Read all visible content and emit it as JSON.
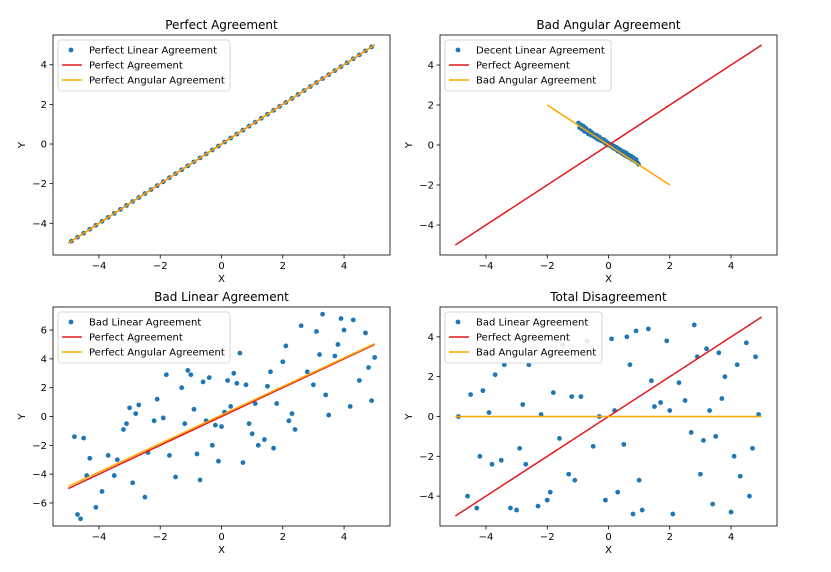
{
  "colors": {
    "points": "#1f77b4",
    "perfect_line": "#e41a1c",
    "angular_line": "#ffa500",
    "axes": "#000000",
    "background": "#ffffff"
  },
  "chart_data": [
    {
      "type": "scatter",
      "title": "Perfect Agreement",
      "xlabel": "X",
      "ylabel": "Y",
      "xlim": [
        -5.5,
        5.5
      ],
      "ylim": [
        -5.6,
        5.5
      ],
      "xticks": [
        -4,
        -2,
        0,
        2,
        4
      ],
      "yticks": [
        -4,
        -2,
        0,
        2,
        4
      ],
      "tick_labels_x": [
        "−4",
        "−2",
        "0",
        "2",
        "4"
      ],
      "tick_labels_y": [
        "−4",
        "−2",
        "0",
        "2",
        "4"
      ],
      "legend_position": "top-left",
      "scatter": {
        "name": "Perfect Linear Agreement",
        "x": [
          -4.9,
          -4.7,
          -4.5,
          -4.3,
          -4.1,
          -3.9,
          -3.7,
          -3.5,
          -3.3,
          -3.1,
          -2.9,
          -2.7,
          -2.5,
          -2.3,
          -2.1,
          -1.9,
          -1.7,
          -1.5,
          -1.3,
          -1.1,
          -0.9,
          -0.7,
          -0.5,
          -0.3,
          -0.1,
          0.1,
          0.3,
          0.5,
          0.7,
          0.9,
          1.1,
          1.3,
          1.5,
          1.7,
          1.9,
          2.1,
          2.3,
          2.5,
          2.7,
          2.9,
          3.1,
          3.3,
          3.5,
          3.7,
          3.9,
          4.1,
          4.3,
          4.5,
          4.7,
          4.9
        ],
        "y": [
          -4.9,
          -4.7,
          -4.5,
          -4.3,
          -4.1,
          -3.9,
          -3.7,
          -3.5,
          -3.3,
          -3.1,
          -2.9,
          -2.7,
          -2.5,
          -2.3,
          -2.1,
          -1.9,
          -1.7,
          -1.5,
          -1.3,
          -1.1,
          -0.9,
          -0.7,
          -0.5,
          -0.3,
          -0.1,
          0.1,
          0.3,
          0.5,
          0.7,
          0.9,
          1.1,
          1.3,
          1.5,
          1.7,
          1.9,
          2.1,
          2.3,
          2.5,
          2.7,
          2.9,
          3.1,
          3.3,
          3.5,
          3.7,
          3.9,
          4.1,
          4.3,
          4.5,
          4.7,
          4.9
        ]
      },
      "lines": [
        {
          "name": "Perfect Agreement",
          "color": "#e41a1c",
          "x": [
            -5,
            5
          ],
          "y": [
            -5,
            5
          ]
        },
        {
          "name": "Perfect Angular Agreement",
          "color": "#ffa500",
          "x": [
            -5,
            5
          ],
          "y": [
            -5,
            5
          ]
        }
      ]
    },
    {
      "type": "scatter",
      "title": "Bad Angular Agreement",
      "xlabel": "X",
      "ylabel": "Y",
      "xlim": [
        -5.5,
        5.5
      ],
      "ylim": [
        -5.5,
        5.5
      ],
      "xticks": [
        -4,
        -2,
        0,
        2,
        4
      ],
      "yticks": [
        -4,
        -2,
        0,
        2,
        4
      ],
      "tick_labels_x": [
        "−4",
        "−2",
        "0",
        "2",
        "4"
      ],
      "tick_labels_y": [
        "−4",
        "−2",
        "0",
        "2",
        "4"
      ],
      "legend_position": "top-left",
      "scatter": {
        "name": "Decent Linear Agreement",
        "x": [
          -0.98,
          -0.94,
          -0.9,
          -0.86,
          -0.82,
          -0.78,
          -0.74,
          -0.7,
          -0.66,
          -0.62,
          -0.58,
          -0.54,
          -0.5,
          -0.46,
          -0.42,
          -0.38,
          -0.34,
          -0.3,
          -0.26,
          -0.22,
          -0.18,
          -0.14,
          -0.1,
          -0.06,
          -0.02,
          0.02,
          0.06,
          0.1,
          0.14,
          0.18,
          0.22,
          0.26,
          0.3,
          0.34,
          0.38,
          0.42,
          0.46,
          0.5,
          0.54,
          0.58,
          0.62,
          0.66,
          0.7,
          0.74,
          0.78,
          0.82,
          0.86,
          0.9,
          0.94,
          0.98
        ],
        "y": [
          1.1,
          0.86,
          1.0,
          0.78,
          0.94,
          0.68,
          0.84,
          0.66,
          0.56,
          0.72,
          0.5,
          0.62,
          0.44,
          0.52,
          0.36,
          0.48,
          0.28,
          0.4,
          0.22,
          0.3,
          0.18,
          0.26,
          0.08,
          0.16,
          0.0,
          0.06,
          -0.04,
          0.02,
          -0.14,
          -0.06,
          -0.2,
          -0.12,
          -0.3,
          -0.2,
          -0.36,
          -0.28,
          -0.44,
          -0.34,
          -0.52,
          -0.4,
          -0.58,
          -0.5,
          -0.66,
          -0.56,
          -0.74,
          -0.64,
          -0.8,
          -0.72,
          -0.88,
          -0.96
        ]
      },
      "lines": [
        {
          "name": "Perfect Agreement",
          "color": "#e41a1c",
          "x": [
            -5,
            5
          ],
          "y": [
            -5,
            5
          ]
        },
        {
          "name": "Bad Angular Agreement",
          "color": "#ffa500",
          "x": [
            -2,
            2
          ],
          "y": [
            2,
            -2
          ]
        }
      ]
    },
    {
      "type": "scatter",
      "title": "Bad Linear Agreement",
      "xlabel": "X",
      "ylabel": "Y",
      "xlim": [
        -5.5,
        5.5
      ],
      "ylim": [
        -7.6,
        7.6
      ],
      "xticks": [
        -4,
        -2,
        0,
        2,
        4
      ],
      "yticks": [
        -6,
        -4,
        -2,
        0,
        2,
        4,
        6
      ],
      "tick_labels_x": [
        "−4",
        "−2",
        "0",
        "2",
        "4"
      ],
      "tick_labels_y": [
        "−6",
        "−4",
        "−2",
        "0",
        "2",
        "4",
        "6"
      ],
      "legend_position": "top-left",
      "scatter": {
        "name": "Bad Linear Agreement",
        "x": [
          -4.8,
          -4.7,
          -4.6,
          -4.5,
          -4.4,
          -4.3,
          -4.1,
          -3.9,
          -3.7,
          -3.5,
          -3.4,
          -3.2,
          -3.1,
          -3.0,
          -2.9,
          -2.8,
          -2.7,
          -2.5,
          -2.4,
          -2.2,
          -2.1,
          -1.9,
          -1.8,
          -1.7,
          -1.5,
          -1.3,
          -1.2,
          -1.1,
          -1.0,
          -0.9,
          -0.8,
          -0.7,
          -0.6,
          -0.5,
          -0.4,
          -0.3,
          -0.2,
          -0.1,
          0.0,
          0.1,
          0.2,
          0.3,
          0.4,
          0.5,
          0.6,
          0.7,
          0.8,
          0.9,
          1.0,
          1.1,
          1.2,
          1.4,
          1.5,
          1.6,
          1.7,
          1.8,
          2.0,
          2.1,
          2.2,
          2.3,
          2.4,
          2.6,
          2.8,
          3.0,
          3.1,
          3.2,
          3.3,
          3.4,
          3.5,
          3.7,
          3.8,
          3.9,
          4.0,
          4.2,
          4.3,
          4.5,
          4.7,
          4.8,
          4.9,
          5.0
        ],
        "y": [
          -1.4,
          -6.8,
          -7.1,
          -1.5,
          -4.1,
          -2.9,
          -6.3,
          -5.2,
          -2.7,
          -4.1,
          -3.0,
          -0.9,
          -0.5,
          0.6,
          -4.6,
          0.2,
          0.8,
          -5.6,
          -2.5,
          -0.3,
          1.2,
          -0.1,
          2.9,
          -2.7,
          -4.2,
          2.0,
          -0.5,
          3.2,
          2.9,
          0.5,
          -2.6,
          -4.4,
          2.4,
          -0.3,
          2.7,
          -2.0,
          -0.6,
          -3.1,
          -0.7,
          0.3,
          2.5,
          0.7,
          3.0,
          2.3,
          4.4,
          -3.2,
          2.2,
          -0.5,
          -1.2,
          0.9,
          -2.0,
          -1.6,
          2.1,
          3.1,
          -2.2,
          0.9,
          3.8,
          4.9,
          -0.3,
          0.2,
          -0.9,
          6.3,
          3.1,
          2.2,
          5.9,
          4.3,
          7.1,
          1.5,
          0.1,
          4.2,
          5.0,
          6.8,
          6.0,
          0.7,
          6.7,
          2.5,
          5.8,
          3.4,
          1.1,
          4.1
        ]
      },
      "lines": [
        {
          "name": "Perfect Agreement",
          "color": "#e41a1c",
          "x": [
            -5,
            5
          ],
          "y": [
            -5,
            5
          ]
        },
        {
          "name": "Perfect Angular Agreement",
          "color": "#ffa500",
          "x": [
            -5,
            5
          ],
          "y": [
            -4.85,
            5.05
          ]
        }
      ]
    },
    {
      "type": "scatter",
      "title": "Total Disagreement",
      "xlabel": "X",
      "ylabel": "Y",
      "xlim": [
        -5.5,
        5.5
      ],
      "ylim": [
        -5.5,
        5.5
      ],
      "xticks": [
        -4,
        -2,
        0,
        2,
        4
      ],
      "yticks": [
        -4,
        -2,
        0,
        2,
        4
      ],
      "tick_labels_x": [
        "−4",
        "−2",
        "0",
        "2",
        "4"
      ],
      "tick_labels_y": [
        "−4",
        "−2",
        "0",
        "2",
        "4"
      ],
      "legend_position": "top-left",
      "scatter": {
        "name": "Bad Linear Agreement",
        "x": [
          -4.9,
          -4.6,
          -4.5,
          -4.3,
          -4.2,
          -4.1,
          -3.9,
          -3.8,
          -3.7,
          -3.5,
          -3.4,
          -3.2,
          -3.0,
          -2.9,
          -2.8,
          -2.7,
          -2.6,
          -2.3,
          -2.2,
          -2.0,
          -1.9,
          -1.8,
          -1.6,
          -1.5,
          -1.3,
          -1.2,
          -1.1,
          -0.9,
          -0.7,
          -0.5,
          -0.3,
          -0.1,
          0.1,
          0.2,
          0.3,
          0.5,
          0.6,
          0.7,
          0.8,
          0.9,
          1.0,
          1.1,
          1.3,
          1.4,
          1.5,
          1.7,
          1.9,
          2.0,
          2.1,
          2.3,
          2.5,
          2.7,
          2.8,
          2.9,
          3.0,
          3.1,
          3.2,
          3.3,
          3.4,
          3.5,
          3.6,
          3.7,
          3.8,
          4.0,
          4.1,
          4.2,
          4.3,
          4.5,
          4.6,
          4.7,
          4.8,
          4.9
        ],
        "y": [
          0.0,
          -4.0,
          1.1,
          -4.6,
          -2.0,
          1.3,
          0.2,
          -2.4,
          2.1,
          -2.2,
          2.6,
          -4.6,
          -4.7,
          -1.6,
          0.6,
          -2.4,
          2.6,
          -4.5,
          0.1,
          -4.2,
          -3.8,
          1.2,
          -1.1,
          3.6,
          -2.9,
          1.0,
          -3.2,
          1.0,
          3.8,
          -1.5,
          0.0,
          -4.2,
          3.9,
          0.3,
          -3.8,
          -1.4,
          4.0,
          2.6,
          -4.9,
          4.3,
          -3.2,
          -4.7,
          4.4,
          1.8,
          0.5,
          0.7,
          3.8,
          0.3,
          -4.9,
          1.7,
          0.8,
          -0.8,
          4.6,
          3.0,
          -2.9,
          -1.2,
          3.4,
          0.3,
          -4.4,
          -1.0,
          3.2,
          0.9,
          2.0,
          -4.8,
          -2.0,
          2.6,
          -3.0,
          3.7,
          -4.0,
          -1.6,
          3.0,
          0.1
        ]
      },
      "lines": [
        {
          "name": "Perfect Agreement",
          "color": "#e41a1c",
          "x": [
            -5,
            5
          ],
          "y": [
            -5,
            5
          ]
        },
        {
          "name": "Bad Angular Agreement",
          "color": "#ffa500",
          "x": [
            -5,
            5
          ],
          "y": [
            0,
            0
          ]
        }
      ]
    }
  ]
}
